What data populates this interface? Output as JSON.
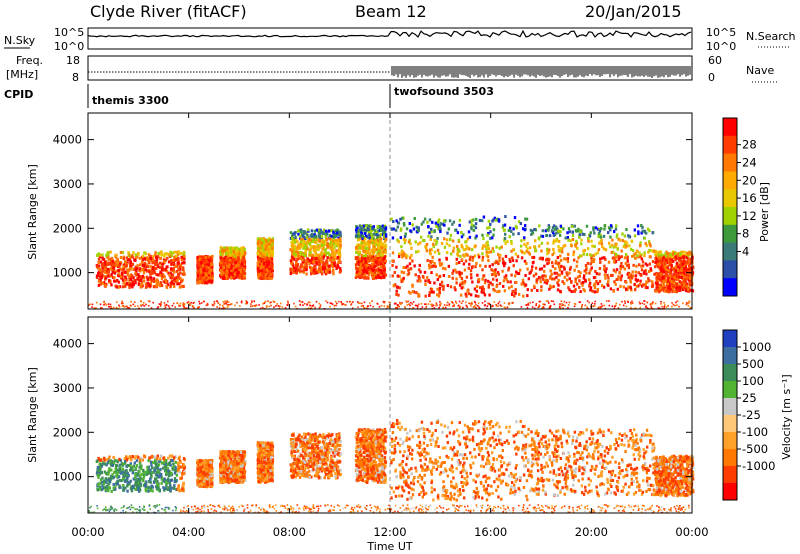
{
  "header": {
    "station": "Clyde River (fitACF)",
    "beam": "Beam 12",
    "date": "20/Jan/2015"
  },
  "nsky_panel": {
    "left_label": "N.Sky",
    "right_label": "N.Search",
    "left_ticks": [
      "10^5",
      "10^0"
    ],
    "right_ticks": [
      "10^5",
      "10^0"
    ]
  },
  "freq_panel": {
    "left_label_1": "Freq.",
    "left_label_2": "[MHz]",
    "left_ticks": [
      "18",
      "8"
    ],
    "right_label": "Nave",
    "right_ticks": [
      "60",
      "0"
    ]
  },
  "cpid": {
    "label": "CPID",
    "modes": [
      {
        "name": "themis 3300",
        "start_hour": 0
      },
      {
        "name": "twofsound 3503",
        "start_hour": 12.0
      }
    ]
  },
  "chart_data": [
    {
      "type": "heatmap",
      "name": "Power",
      "ylabel": "Slant Range [km]",
      "xlabel": "Time UT",
      "xlim_hours": [
        0,
        24
      ],
      "ylim_km": [
        180,
        4600
      ],
      "y_ticks": [
        "1000",
        "2000",
        "3000",
        "4000"
      ],
      "x_ticks": [
        "00:00",
        "04:00",
        "08:00",
        "12:00",
        "16:00",
        "20:00",
        "00:00"
      ],
      "colorbar": {
        "label": "Power [dB]",
        "tick_labels": [
          "28",
          "24",
          "20",
          "16",
          "12",
          "8",
          "4"
        ],
        "colors": [
          "#ff0000",
          "#ff3c00",
          "#ff7800",
          "#ffaa00",
          "#e8c800",
          "#a0d200",
          "#3c9a3c",
          "#3c7a78",
          "#2c50a8",
          "#0000ff"
        ]
      }
    },
    {
      "type": "heatmap",
      "name": "Velocity",
      "ylabel": "Slant Range [km]",
      "xlabel": "Time UT",
      "xlim_hours": [
        0,
        24
      ],
      "ylim_km": [
        180,
        4600
      ],
      "y_ticks": [
        "1000",
        "2000",
        "3000",
        "4000"
      ],
      "x_ticks": [
        "00:00",
        "04:00",
        "08:00",
        "12:00",
        "16:00",
        "20:00",
        "00:00"
      ],
      "colorbar": {
        "label": "Velocity [m s⁻¹]",
        "tick_labels": [
          "1000",
          "500",
          "100",
          "25",
          "-25",
          "-100",
          "-500",
          "-1000"
        ],
        "colors": [
          "#2040c0",
          "#3c6ea0",
          "#3c8c5a",
          "#50b432",
          "#c8c8c8",
          "#ffc878",
          "#ffa028",
          "#ff7800",
          "#ff3c00",
          "#ff0000"
        ]
      }
    }
  ]
}
